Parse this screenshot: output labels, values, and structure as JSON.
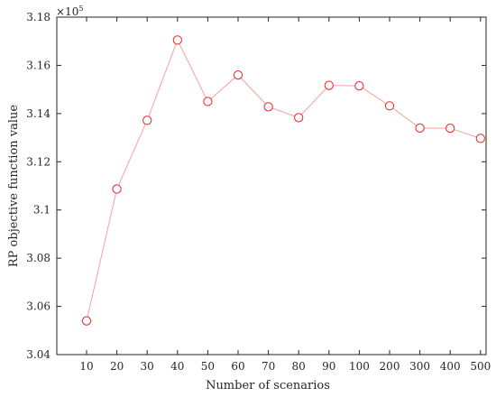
{
  "chart_data": {
    "type": "line",
    "categories": [
      "10",
      "20",
      "30",
      "40",
      "50",
      "60",
      "70",
      "80",
      "90",
      "100",
      "200",
      "300",
      "400",
      "500"
    ],
    "series": [
      {
        "values": [
          3.054,
          3.1087,
          3.1372,
          3.1705,
          3.145,
          3.156,
          3.1428,
          3.1383,
          3.1517,
          3.1515,
          3.1432,
          3.134,
          3.1339,
          3.1297
        ],
        "line_color": "#f6a0a0",
        "marker_color": "#ee2222",
        "marker": "open-circle"
      }
    ],
    "ylim": [
      3.04,
      3.18
    ],
    "yticks": [
      "3.04",
      "3.06",
      "3.08",
      "3.1",
      "3.12",
      "3.14",
      "3.16",
      "3.18"
    ],
    "y_multiplier_base": "×10",
    "y_multiplier_exp": "5",
    "xlabel": "Number of scenarios",
    "ylabel": "RP objective function value",
    "grid": false
  }
}
